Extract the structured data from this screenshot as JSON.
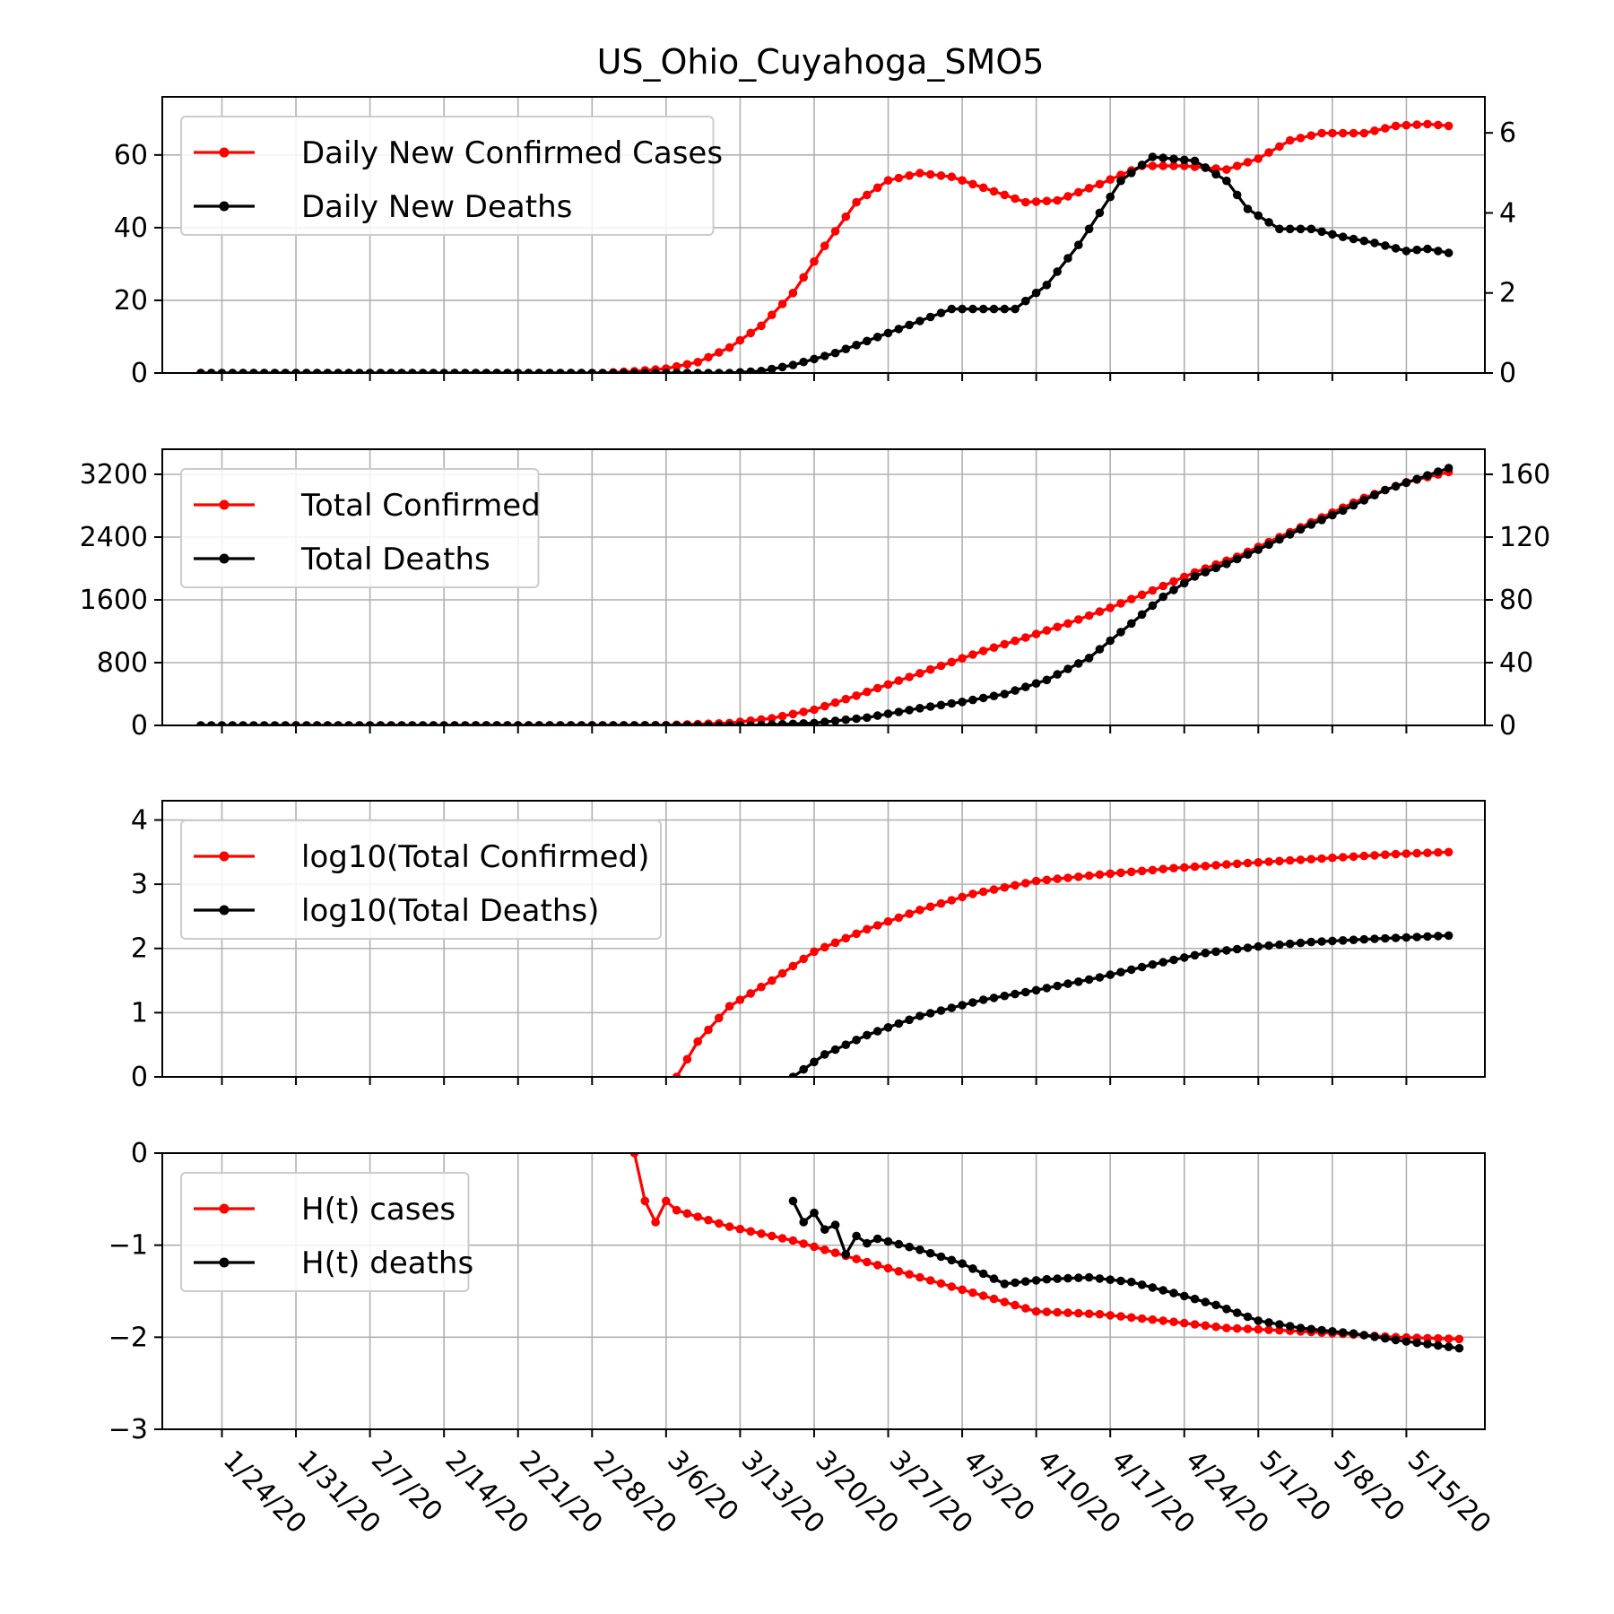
{
  "colors": {
    "confirmed": "#ff0000",
    "deaths": "#000000",
    "grid": "#b0b0b0"
  },
  "chart_data": [
    {
      "type": "line",
      "title": "US_Ohio_Cuyahoga_SMO5",
      "x_labels": [
        "1/24/20",
        "1/31/20",
        "2/7/20",
        "2/14/20",
        "2/21/20",
        "2/28/20",
        "3/6/20",
        "3/13/20",
        "3/20/20",
        "3/27/20",
        "4/3/20",
        "4/10/20",
        "4/17/20",
        "4/24/20",
        "5/1/20",
        "5/8/20",
        "5/15/20"
      ],
      "ylim": [
        0,
        76
      ],
      "yticks": [
        "0",
        "20",
        "40",
        "60"
      ],
      "y2lim": [
        0,
        6.9
      ],
      "y2ticks": [
        "0",
        "2",
        "4",
        "6"
      ],
      "legend": [
        "Daily New Confirmed Cases",
        "Daily New Deaths"
      ],
      "legend_position": "upper-left",
      "grid": true,
      "series": [
        {
          "name": "Daily New Confirmed Cases",
          "axis": "left",
          "color": "#ff0000",
          "points": [
            [
              "1/22/20",
              0
            ],
            [
              "2/29/20",
              0
            ],
            [
              "3/3/20",
              0.5
            ],
            [
              "3/6/20",
              1.2
            ],
            [
              "3/9/20",
              3
            ],
            [
              "3/12/20",
              7
            ],
            [
              "3/15/20",
              13
            ],
            [
              "3/18/20",
              22
            ],
            [
              "3/21/20",
              35
            ],
            [
              "3/24/20",
              47
            ],
            [
              "3/27/20",
              53
            ],
            [
              "3/30/20",
              55
            ],
            [
              "4/2/20",
              54
            ],
            [
              "4/6/20",
              50
            ],
            [
              "4/9/20",
              47
            ],
            [
              "4/12/20",
              47.5
            ],
            [
              "4/16/20",
              52
            ],
            [
              "4/20/20",
              57
            ],
            [
              "4/24/20",
              57
            ],
            [
              "4/28/20",
              56
            ],
            [
              "5/1/20",
              59
            ],
            [
              "5/4/20",
              64
            ],
            [
              "5/7/20",
              66
            ],
            [
              "5/11/20",
              66
            ],
            [
              "5/14/20",
              68
            ],
            [
              "5/17/20",
              68.5
            ],
            [
              "5/19/20",
              68
            ]
          ]
        },
        {
          "name": "Daily New Deaths",
          "axis": "right",
          "color": "#000000",
          "points": [
            [
              "1/22/20",
              0
            ],
            [
              "3/12/20",
              0
            ],
            [
              "3/15/20",
              0.05
            ],
            [
              "3/18/20",
              0.2
            ],
            [
              "3/20/20",
              0.35
            ],
            [
              "3/22/20",
              0.5
            ],
            [
              "3/25/20",
              0.8
            ],
            [
              "3/29/20",
              1.2
            ],
            [
              "4/2/20",
              1.6
            ],
            [
              "4/5/20",
              1.6
            ],
            [
              "4/8/20",
              1.6
            ],
            [
              "4/11/20",
              2.2
            ],
            [
              "4/14/20",
              3.2
            ],
            [
              "4/16/20",
              4.0
            ],
            [
              "4/18/20",
              4.8
            ],
            [
              "4/21/20",
              5.4
            ],
            [
              "4/25/20",
              5.3
            ],
            [
              "4/28/20",
              4.8
            ],
            [
              "4/30/20",
              4.1
            ],
            [
              "5/3/20",
              3.6
            ],
            [
              "5/6/20",
              3.6
            ],
            [
              "5/9/20",
              3.4
            ],
            [
              "5/12/20",
              3.25
            ],
            [
              "5/15/20",
              3.05
            ],
            [
              "5/17/20",
              3.1
            ],
            [
              "5/19/20",
              3.0
            ]
          ]
        }
      ]
    },
    {
      "type": "line",
      "ylim": [
        0,
        3520
      ],
      "yticks": [
        "0",
        "800",
        "1600",
        "2400",
        "3200"
      ],
      "y2lim": [
        0,
        176
      ],
      "y2ticks": [
        "0",
        "40",
        "80",
        "120",
        "160"
      ],
      "legend": [
        "Total Confirmed",
        "Total Deaths"
      ],
      "legend_position": "upper-left",
      "grid": true,
      "series": [
        {
          "name": "Total Confirmed",
          "axis": "left",
          "color": "#ff0000",
          "points": [
            [
              "1/22/20",
              0
            ],
            [
              "3/6/20",
              3
            ],
            [
              "3/12/20",
              30
            ],
            [
              "3/16/20",
              90
            ],
            [
              "3/20/20",
              200
            ],
            [
              "3/24/20",
              380
            ],
            [
              "3/28/20",
              570
            ],
            [
              "4/1/20",
              760
            ],
            [
              "4/5/20",
              950
            ],
            [
              "4/9/20",
              1120
            ],
            [
              "4/13/20",
              1300
            ],
            [
              "4/17/20",
              1500
            ],
            [
              "4/21/20",
              1720
            ],
            [
              "4/25/20",
              1950
            ],
            [
              "4/29/20",
              2150
            ],
            [
              "5/3/20",
              2400
            ],
            [
              "5/7/20",
              2650
            ],
            [
              "5/11/20",
              2900
            ],
            [
              "5/15/20",
              3100
            ],
            [
              "5/19/20",
              3230
            ]
          ]
        },
        {
          "name": "Total Deaths",
          "axis": "right",
          "color": "#000000",
          "points": [
            [
              "1/22/20",
              0
            ],
            [
              "3/14/20",
              0
            ],
            [
              "3/20/20",
              1.5
            ],
            [
              "3/25/20",
              5
            ],
            [
              "3/30/20",
              11
            ],
            [
              "4/3/20",
              15
            ],
            [
              "4/7/20",
              20
            ],
            [
              "4/11/20",
              29
            ],
            [
              "4/15/20",
              43
            ],
            [
              "4/19/20",
              65
            ],
            [
              "4/22/20",
              82
            ],
            [
              "4/25/20",
              95
            ],
            [
              "4/28/20",
              103
            ],
            [
              "5/1/20",
              112
            ],
            [
              "5/5/20",
              125
            ],
            [
              "5/9/20",
              137
            ],
            [
              "5/13/20",
              150
            ],
            [
              "5/19/20",
              164
            ]
          ]
        }
      ]
    },
    {
      "type": "line",
      "ylim": [
        0,
        4.3
      ],
      "yticks": [
        "0",
        "1",
        "2",
        "3",
        "4"
      ],
      "legend": [
        "log10(Total Confirmed)",
        "log10(Total Deaths)"
      ],
      "legend_position": "upper-left",
      "grid": true,
      "series": [
        {
          "name": "log10(Total Confirmed)",
          "color": "#ff0000",
          "points": [
            [
              "3/7/20",
              0
            ],
            [
              "3/9/20",
              0.55
            ],
            [
              "3/12/20",
              1.1
            ],
            [
              "3/16/20",
              1.5
            ],
            [
              "3/20/20",
              1.95
            ],
            [
              "3/25/20",
              2.3
            ],
            [
              "3/30/20",
              2.6
            ],
            [
              "4/4/20",
              2.85
            ],
            [
              "4/10/20",
              3.05
            ],
            [
              "4/16/20",
              3.15
            ],
            [
              "4/23/20",
              3.25
            ],
            [
              "4/30/20",
              3.33
            ],
            [
              "5/7/20",
              3.4
            ],
            [
              "5/14/20",
              3.47
            ],
            [
              "5/19/20",
              3.5
            ]
          ]
        },
        {
          "name": "log10(Total Deaths)",
          "color": "#000000",
          "points": [
            [
              "3/18/20",
              0
            ],
            [
              "3/21/20",
              0.35
            ],
            [
              "3/25/20",
              0.65
            ],
            [
              "3/30/20",
              0.95
            ],
            [
              "4/5/20",
              1.2
            ],
            [
              "4/10/20",
              1.35
            ],
            [
              "4/16/20",
              1.55
            ],
            [
              "4/21/20",
              1.75
            ],
            [
              "4/26/20",
              1.93
            ],
            [
              "5/1/20",
              2.03
            ],
            [
              "5/6/20",
              2.1
            ],
            [
              "5/12/20",
              2.15
            ],
            [
              "5/19/20",
              2.2
            ]
          ]
        }
      ]
    },
    {
      "type": "line",
      "ylim": [
        -3,
        0
      ],
      "yticks": [
        "−3",
        "−2",
        "−1",
        "0"
      ],
      "legend": [
        "H(t) cases",
        "H(t) deaths"
      ],
      "legend_position": "upper-left",
      "grid": true,
      "series": [
        {
          "name": "H(t) cases",
          "color": "#ff0000",
          "points": [
            [
              "3/3/20",
              0
            ],
            [
              "3/4/20",
              -0.52
            ],
            [
              "3/5/20",
              -0.75
            ],
            [
              "3/6/20",
              -0.52
            ],
            [
              "3/7/20",
              -0.62
            ],
            [
              "3/12/20",
              -0.8
            ],
            [
              "3/18/20",
              -0.95
            ],
            [
              "3/24/20",
              -1.15
            ],
            [
              "3/30/20",
              -1.35
            ],
            [
              "4/5/20",
              -1.55
            ],
            [
              "4/10/20",
              -1.72
            ],
            [
              "4/16/20",
              -1.75
            ],
            [
              "4/22/20",
              -1.82
            ],
            [
              "4/28/20",
              -1.9
            ],
            [
              "5/4/20",
              -1.93
            ],
            [
              "5/10/20",
              -1.97
            ],
            [
              "5/14/20",
              -2.0
            ],
            [
              "5/20/20",
              -2.02
            ]
          ]
        },
        {
          "name": "H(t) deaths",
          "color": "#000000",
          "points": [
            [
              "3/18/20",
              -0.52
            ],
            [
              "3/19/20",
              -0.75
            ],
            [
              "3/20/20",
              -0.65
            ],
            [
              "3/21/20",
              -0.83
            ],
            [
              "3/22/20",
              -0.78
            ],
            [
              "3/23/20",
              -1.1
            ],
            [
              "3/24/20",
              -0.9
            ],
            [
              "3/25/20",
              -0.98
            ],
            [
              "3/26/20",
              -0.93
            ],
            [
              "3/30/20",
              -1.05
            ],
            [
              "4/3/20",
              -1.2
            ],
            [
              "4/7/20",
              -1.42
            ],
            [
              "4/11/20",
              -1.37
            ],
            [
              "4/15/20",
              -1.35
            ],
            [
              "4/19/20",
              -1.4
            ],
            [
              "4/23/20",
              -1.52
            ],
            [
              "4/27/20",
              -1.65
            ],
            [
              "5/1/20",
              -1.82
            ],
            [
              "5/5/20",
              -1.9
            ],
            [
              "5/10/20",
              -1.96
            ],
            [
              "5/14/20",
              -2.03
            ],
            [
              "5/20/20",
              -2.12
            ]
          ]
        }
      ]
    }
  ]
}
